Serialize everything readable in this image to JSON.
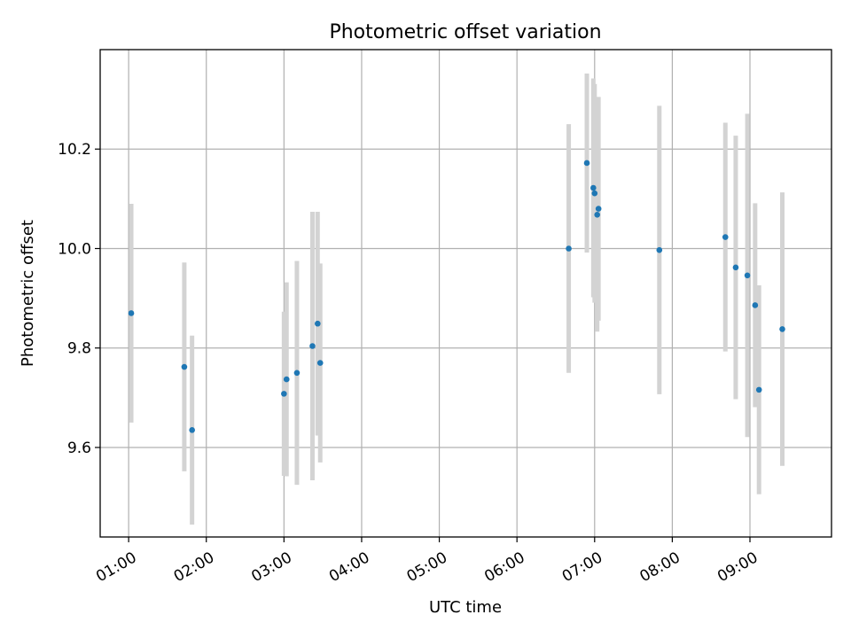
{
  "chart_data": {
    "type": "scatter",
    "title": "Photometric offset variation",
    "xlabel": "UTC time",
    "ylabel": "Photometric offset",
    "xlim": [
      "00:38",
      "10:03"
    ],
    "ylim": [
      9.42,
      10.4
    ],
    "x_ticks": [
      "01:00",
      "02:00",
      "03:00",
      "04:00",
      "05:00",
      "06:00",
      "07:00",
      "08:00",
      "09:00"
    ],
    "y_ticks": [
      9.6,
      9.8,
      10.0,
      10.2
    ],
    "grid": true,
    "colors": {
      "marker": "#1f77b4",
      "errorbar": "#d3d3d3",
      "grid": "#b0b0b0"
    },
    "series": [
      {
        "points": [
          {
            "x": "01:02",
            "y": 9.87,
            "yerr": 0.22
          },
          {
            "x": "01:43",
            "y": 9.762,
            "yerr": 0.21
          },
          {
            "x": "01:49",
            "y": 9.635,
            "yerr": 0.19
          },
          {
            "x": "03:00",
            "y": 9.708,
            "yerr": 0.165
          },
          {
            "x": "03:02",
            "y": 9.737,
            "yerr": 0.195
          },
          {
            "x": "03:10",
            "y": 9.75,
            "yerr": 0.225
          },
          {
            "x": "03:22",
            "y": 9.804,
            "yerr": 0.27
          },
          {
            "x": "03:26",
            "y": 9.849,
            "yerr": 0.225
          },
          {
            "x": "03:28",
            "y": 9.77,
            "yerr": 0.2
          },
          {
            "x": "06:40",
            "y": 10.0,
            "yerr": 0.25
          },
          {
            "x": "06:54",
            "y": 10.172,
            "yerr": 0.18
          },
          {
            "x": "06:59",
            "y": 10.122,
            "yerr": 0.22
          },
          {
            "x": "07:00",
            "y": 10.111,
            "yerr": 0.22
          },
          {
            "x": "07:02",
            "y": 10.068,
            "yerr": 0.235
          },
          {
            "x": "07:03",
            "y": 10.08,
            "yerr": 0.225
          },
          {
            "x": "07:50",
            "y": 9.997,
            "yerr": 0.29
          },
          {
            "x": "08:41",
            "y": 10.023,
            "yerr": 0.23
          },
          {
            "x": "08:49",
            "y": 9.962,
            "yerr": 0.265
          },
          {
            "x": "08:58",
            "y": 9.946,
            "yerr": 0.325
          },
          {
            "x": "09:04",
            "y": 9.886,
            "yerr": 0.205
          },
          {
            "x": "09:07",
            "y": 9.716,
            "yerr": 0.21
          },
          {
            "x": "09:25",
            "y": 9.838,
            "yerr": 0.275
          }
        ]
      }
    ]
  }
}
